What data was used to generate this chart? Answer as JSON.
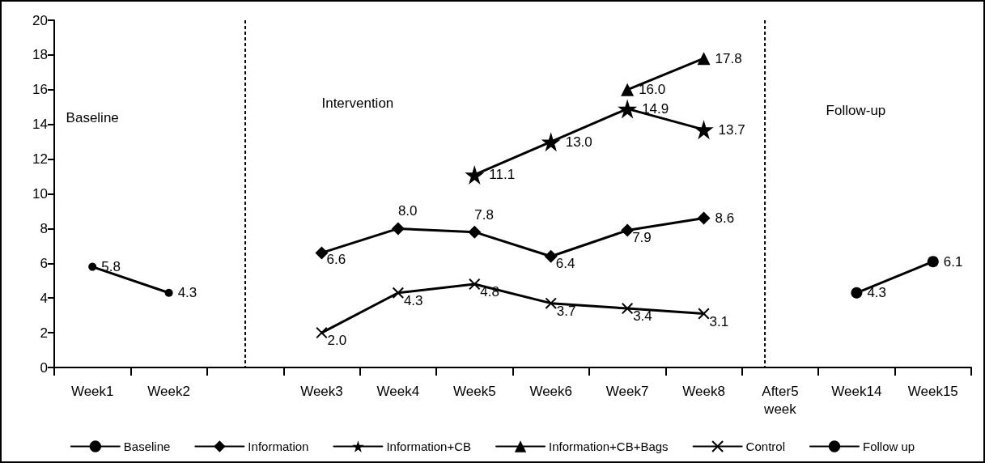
{
  "chart_data": {
    "type": "line",
    "categories": [
      "Week1",
      "Week2",
      null,
      "Week3",
      "Week4",
      "Week5",
      "Week6",
      "Week7",
      "Week8",
      "After5 week",
      "Week14",
      "Week15"
    ],
    "series": [
      {
        "name": "Baseline",
        "color": "#000000",
        "marker": "circle",
        "values": [
          5.8,
          4.3,
          null,
          null,
          null,
          null,
          null,
          null,
          null,
          null,
          null,
          null
        ],
        "value_labels": [
          "5.8",
          "4.3",
          null,
          null,
          null,
          null,
          null,
          null,
          null,
          null,
          null,
          null
        ]
      },
      {
        "name": "Information",
        "color": "#000000",
        "marker": "diamond",
        "values": [
          null,
          null,
          null,
          6.6,
          8.0,
          7.8,
          6.4,
          7.9,
          8.6,
          null,
          null,
          null
        ],
        "value_labels": [
          null,
          null,
          null,
          "6.6",
          "8.0",
          "7.8",
          "6.4",
          "7.9",
          "8.6",
          null,
          null,
          null
        ]
      },
      {
        "name": "Information+CB",
        "color": "#000000",
        "marker": "star",
        "values": [
          null,
          null,
          null,
          null,
          null,
          11.1,
          13.0,
          14.9,
          13.7,
          null,
          null,
          null
        ],
        "value_labels": [
          null,
          null,
          null,
          null,
          null,
          "11.1",
          "13.0",
          "14.9",
          "13.7",
          null,
          null,
          null
        ]
      },
      {
        "name": "Information+CB+Bags",
        "color": "#000000",
        "marker": "triangle",
        "values": [
          null,
          null,
          null,
          null,
          null,
          null,
          null,
          16.0,
          17.8,
          null,
          null,
          null
        ],
        "value_labels": [
          null,
          null,
          null,
          null,
          null,
          null,
          null,
          "16.0",
          "17.8",
          null,
          null,
          null
        ]
      },
      {
        "name": "Control",
        "color": "#000000",
        "marker": "cross",
        "values": [
          null,
          null,
          null,
          2.0,
          4.3,
          4.8,
          3.7,
          3.4,
          3.1,
          null,
          null,
          null
        ],
        "value_labels": [
          null,
          null,
          null,
          "2.0",
          "4.3",
          "4.8",
          "3.7",
          "3.4",
          "3.1",
          null,
          null,
          null
        ]
      },
      {
        "name": "Follow up",
        "color": "#000000",
        "marker": "circle",
        "values": [
          null,
          null,
          null,
          null,
          null,
          null,
          null,
          null,
          null,
          null,
          4.3,
          6.1
        ],
        "value_labels": [
          null,
          null,
          null,
          null,
          null,
          null,
          null,
          null,
          null,
          null,
          "4.3",
          "6.1"
        ]
      }
    ],
    "ylim": [
      0,
      20
    ],
    "yticks": [
      0,
      2,
      4,
      6,
      8,
      10,
      12,
      14,
      16,
      18,
      20
    ],
    "legend": "bottom",
    "line_style": "solid",
    "annotations": [
      "Baseline",
      "Intervention",
      "Follow-up"
    ]
  }
}
